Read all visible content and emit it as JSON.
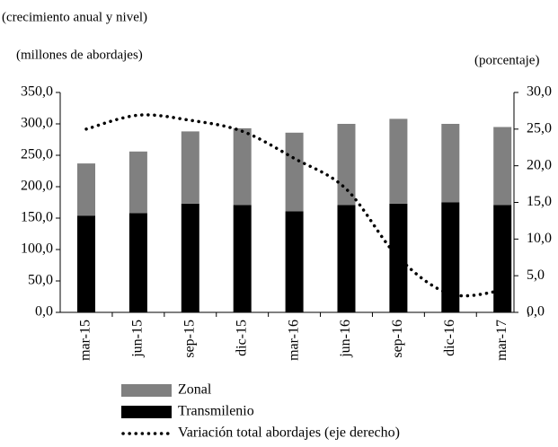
{
  "chart_data": {
    "type": "bar",
    "title": "(crecimiento anual y nivel)",
    "y_label": "(millones de abordajes)",
    "y2_label": "(porcentaje)",
    "stacked": true,
    "categories": [
      "mar-15",
      "jun-15",
      "sep-15",
      "dic-15",
      "mar-16",
      "jun-16",
      "sep-16",
      "dic-16",
      "mar-17"
    ],
    "series": [
      {
        "name": "Zonal",
        "type": "bar",
        "color": "#808080",
        "values": [
          83,
          98,
          115,
          122,
          125,
          129,
          135,
          125,
          124
        ]
      },
      {
        "name": "Transmilenio",
        "type": "bar",
        "color": "#000000",
        "values": [
          154,
          158,
          173,
          171,
          161,
          171,
          173,
          175,
          171
        ]
      },
      {
        "name": "Variación total abordajes (eje derecho)",
        "type": "line",
        "axis": "y2",
        "color": "#000000",
        "values": [
          25.0,
          26.9,
          26.2,
          24.7,
          21.0,
          16.8,
          7.5,
          2.5,
          3.0
        ]
      }
    ],
    "ylim": [
      0,
      350
    ],
    "yticks": [
      {
        "value": 0,
        "label": "0,0"
      },
      {
        "value": 50,
        "label": "50,0"
      },
      {
        "value": 100,
        "label": "100,0"
      },
      {
        "value": 150,
        "label": "150,0"
      },
      {
        "value": 200,
        "label": "200,0"
      },
      {
        "value": 250,
        "label": "250,0"
      },
      {
        "value": 300,
        "label": "300,0"
      },
      {
        "value": 350,
        "label": "350,0"
      }
    ],
    "y2lim": [
      0,
      30
    ],
    "y2ticks": [
      {
        "value": 0,
        "label": "0,0"
      },
      {
        "value": 5,
        "label": "5,0"
      },
      {
        "value": 10,
        "label": "10,0"
      },
      {
        "value": 15,
        "label": "15,0"
      },
      {
        "value": 20,
        "label": "20,0"
      },
      {
        "value": 25,
        "label": "25,0"
      },
      {
        "value": 30,
        "label": "30,0"
      }
    ]
  }
}
